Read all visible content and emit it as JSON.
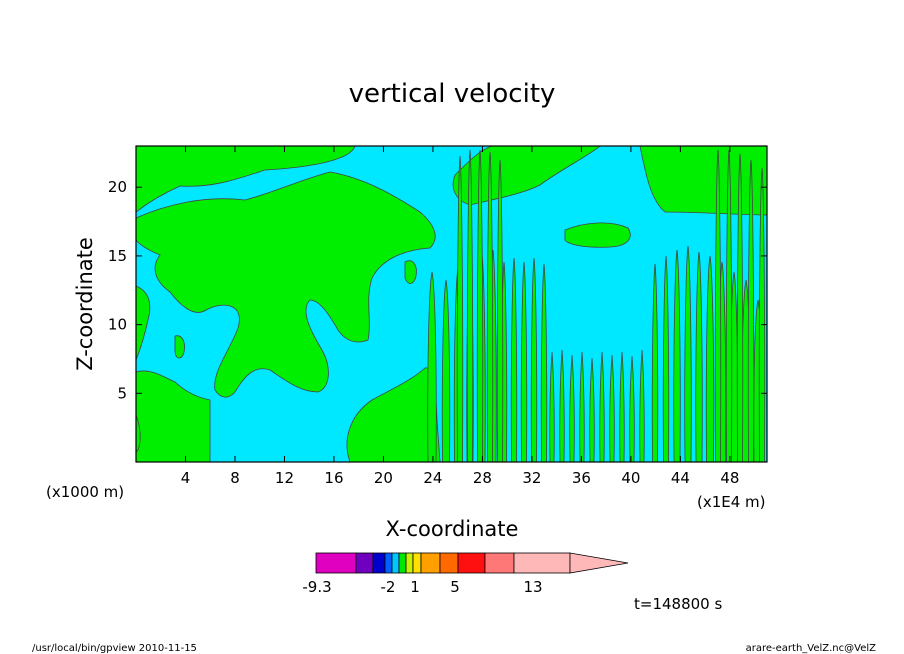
{
  "chart_data": {
    "type": "heatmap",
    "title": "vertical velocity",
    "xlabel": "X-coordinate",
    "ylabel": "Z-coordinate",
    "x_unit_left": "(x1000 m)",
    "x_unit_right": "(x1E4 m)",
    "xlim": [
      0,
      51
    ],
    "ylim": [
      0,
      23
    ],
    "x_ticks": [
      4,
      8,
      12,
      16,
      20,
      24,
      28,
      32,
      36,
      40,
      44,
      48
    ],
    "y_ticks": [
      5,
      10,
      15,
      20
    ],
    "colors": {
      "positive": "#00ee00",
      "negative": "#00e8ff",
      "contour": "#444444"
    },
    "colorbar": {
      "colors": [
        "#e000c0",
        "#7000c0",
        "#0000cc",
        "#0060ff",
        "#00c8ff",
        "#00e800",
        "#c8f000",
        "#ffe000",
        "#ffa000",
        "#ff6a00",
        "#ff1010",
        "#ff7878",
        "#ffb8b8"
      ],
      "tick_labels": [
        "-9.3",
        "-2",
        "1",
        "5",
        "13"
      ]
    },
    "annotation": "t=148800 s"
  },
  "footer": {
    "left": "/usr/local/bin/gpview  2010-11-15",
    "right": "arare-earth_VelZ.nc@VelZ"
  }
}
